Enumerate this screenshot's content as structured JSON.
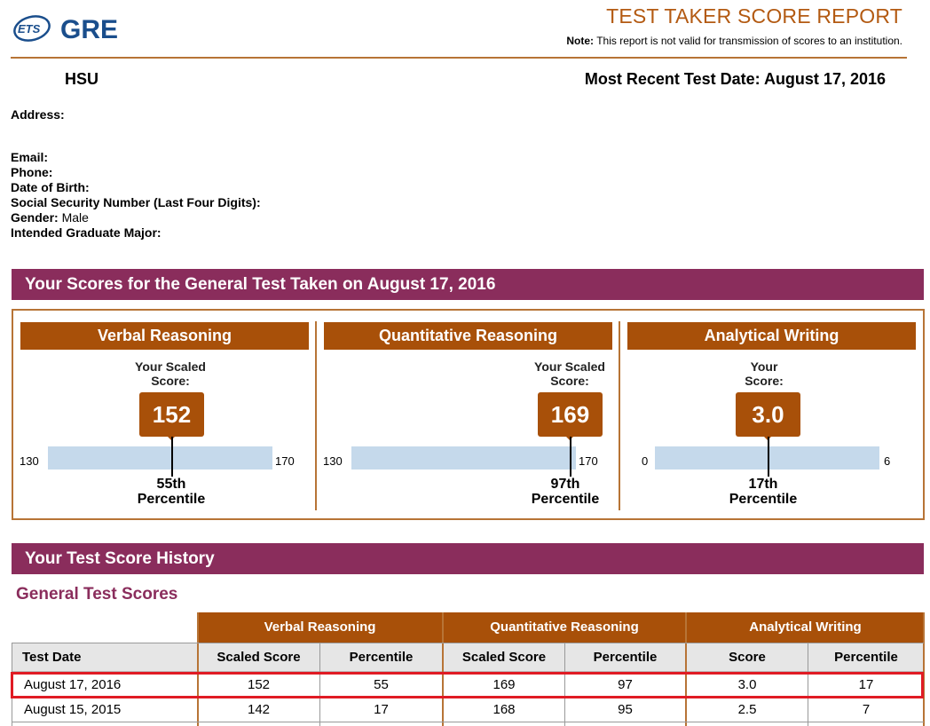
{
  "header": {
    "report_title": "TEST TAKER SCORE REPORT",
    "note_label": "Note:",
    "note_text": "This report is not valid for transmission of scores to an institution.",
    "logo_ets": "ETS",
    "logo_gre": "GRE"
  },
  "candidate": {
    "name": "HSU",
    "recent_date_label": "Most Recent Test Date: August 17, 2016",
    "address_label": "Address:",
    "email_label": "Email:",
    "phone_label": "Phone:",
    "dob_label": "Date of Birth:",
    "ssn_label": "Social Security Number (Last Four Digits):",
    "gender_label": "Gender:",
    "gender_value": "Male",
    "major_label": "Intended Graduate Major:"
  },
  "scores_section": {
    "title": "Your Scores for the General Test Taken on August 17, 2016",
    "sections": [
      {
        "name": "Verbal Reasoning",
        "label_line1": "Your Scaled",
        "label_line2": "Score:",
        "score": "152",
        "min": "130",
        "max": "170",
        "percentile": "55th",
        "percentile_word": "Percentile",
        "score_num": 152,
        "min_num": 130,
        "max_num": 170
      },
      {
        "name": "Quantitative Reasoning",
        "label_line1": "Your Scaled",
        "label_line2": "Score:",
        "score": "169",
        "min": "130",
        "max": "170",
        "percentile": "97th",
        "percentile_word": "Percentile",
        "score_num": 169,
        "min_num": 130,
        "max_num": 170
      },
      {
        "name": "Analytical Writing",
        "label_line1": "Your",
        "label_line2": "Score:",
        "score": "3.0",
        "min": "0",
        "max": "6",
        "percentile": "17th",
        "percentile_word": "Percentile",
        "score_num": 3.0,
        "min_num": 0,
        "max_num": 6
      }
    ]
  },
  "history": {
    "title": "Your Test Score History",
    "subtitle": "General Test Scores",
    "group_headers": [
      "Verbal Reasoning",
      "Quantitative Reasoning",
      "Analytical Writing"
    ],
    "columns": [
      "Test Date",
      "Scaled Score",
      "Percentile",
      "Scaled Score",
      "Percentile",
      "Score",
      "Percentile"
    ],
    "rows": [
      [
        "August 17, 2016",
        "152",
        "55",
        "169",
        "97",
        "3.0",
        "17"
      ],
      [
        "August 15, 2015",
        "142",
        "17",
        "168",
        "95",
        "2.5",
        "7"
      ]
    ]
  },
  "colors": {
    "accent": "#a85009",
    "purple": "#8a2d5c",
    "bar": "#c5d9eb",
    "highlight": "#e01b24"
  }
}
